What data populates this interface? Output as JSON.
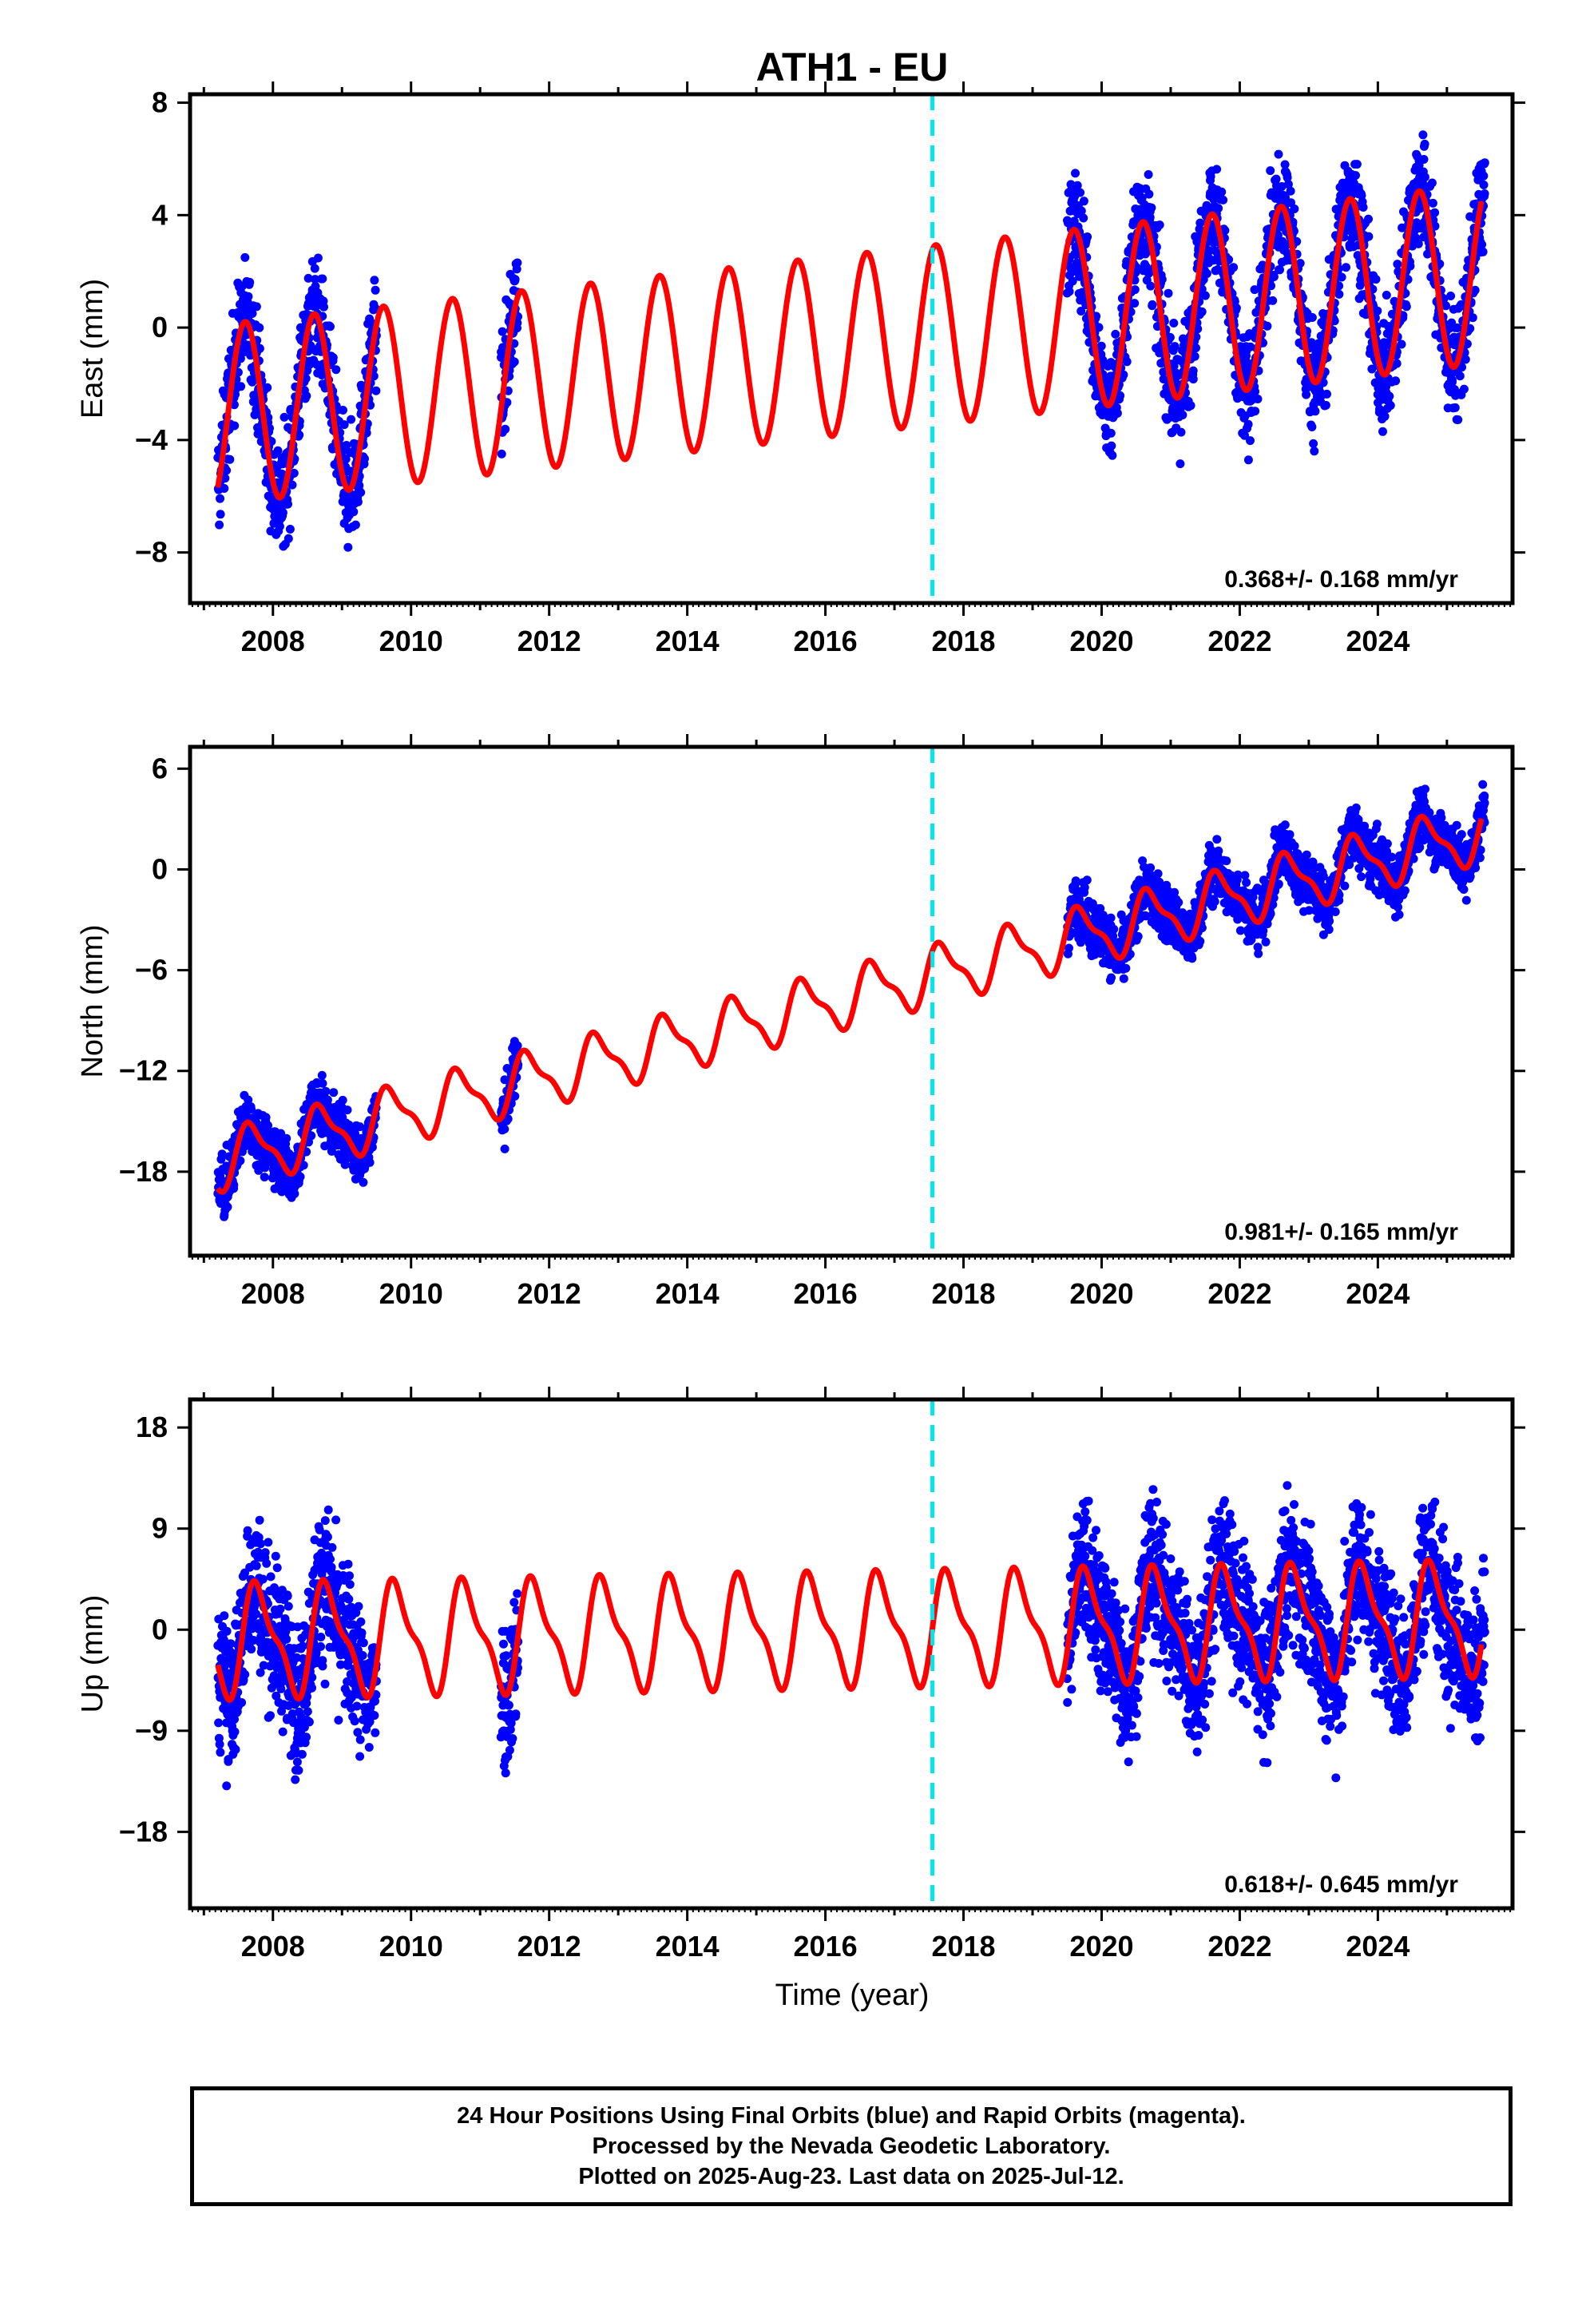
{
  "title": "ATH1 - EU",
  "xlabel": "Time (year)",
  "colors": {
    "data": "#0000ff",
    "model": "#ff0000",
    "event": "#00e5ee",
    "frame": "#000000"
  },
  "footer": {
    "line1": "24 Hour Positions Using Final Orbits (blue) and Rapid Orbits (magenta).",
    "line2": "Processed by the Nevada Geodetic Laboratory.",
    "line3": "Plotted on 2025-Aug-23. Last data on 2025-Jul-12."
  },
  "chart_data": [
    {
      "type": "scatter",
      "component": "east",
      "ylabel": "East (mm)",
      "rate": "0.368+/- 0.168 mm/yr",
      "xlim": [
        2006.8,
        2025.95
      ],
      "ylim": [
        -9.8,
        8.3
      ],
      "xticks": [
        2008,
        2010,
        2012,
        2014,
        2016,
        2018,
        2020,
        2022,
        2024
      ],
      "yticks": [
        -8,
        -4,
        0,
        4,
        8
      ],
      "event_line_x": 2017.55,
      "model": {
        "trend": {
          "x": [
            2007.2,
            2025.5
          ],
          "y": [
            -3.1,
            1.9
          ]
        },
        "annual_amplitude": 3.2,
        "annual_phase_year": 0.35
      },
      "observations": {
        "segments": [
          [
            2007.2,
            2009.5
          ],
          [
            2011.3,
            2011.55
          ],
          [
            2019.5,
            2025.55
          ]
        ],
        "scatter": 1.4,
        "count_per_year": 300
      }
    },
    {
      "type": "scatter",
      "component": "north",
      "ylabel": "North (mm)",
      "rate": "0.981+/- 0.165 mm/yr",
      "xlim": [
        2006.8,
        2025.95
      ],
      "ylim": [
        -23,
        7.3
      ],
      "xticks": [
        2008,
        2010,
        2012,
        2014,
        2016,
        2018,
        2020,
        2022,
        2024
      ],
      "yticks": [
        -18,
        -12,
        -6,
        0,
        6
      ],
      "event_line_x": 2017.55,
      "model": {
        "trend": {
          "x": [
            2007.2,
            2025.5
          ],
          "y": [
            -17.4,
            2.2
          ]
        },
        "annual_amplitude": 1.6,
        "annual_phase_year": 0.45
      },
      "observations": {
        "segments": [
          [
            2007.2,
            2009.5
          ],
          [
            2011.3,
            2011.55
          ],
          [
            2019.5,
            2025.55
          ]
        ],
        "scatter": 1.2,
        "count_per_year": 300
      }
    },
    {
      "type": "scatter",
      "component": "up",
      "ylabel": "Up (mm)",
      "rate": "0.618+/- 0.645 mm/yr",
      "xlim": [
        2006.8,
        2025.95
      ],
      "ylim": [
        -24.8,
        20.5
      ],
      "xticks": [
        2008,
        2010,
        2012,
        2014,
        2016,
        2018,
        2020,
        2022,
        2024
      ],
      "yticks": [
        -18,
        -9,
        0,
        9,
        18
      ],
      "event_line_x": 2017.55,
      "model": {
        "trend": {
          "x": [
            2007.2,
            2025.5
          ],
          "y": [
            -1.0,
            1.0
          ]
        },
        "annual_amplitude": 4.5,
        "annual_phase_year": 0.55
      },
      "observations": {
        "segments": [
          [
            2007.2,
            2009.5
          ],
          [
            2011.3,
            2011.55
          ],
          [
            2019.5,
            2025.55
          ]
        ],
        "scatter": 4.6,
        "count_per_year": 300
      }
    }
  ]
}
